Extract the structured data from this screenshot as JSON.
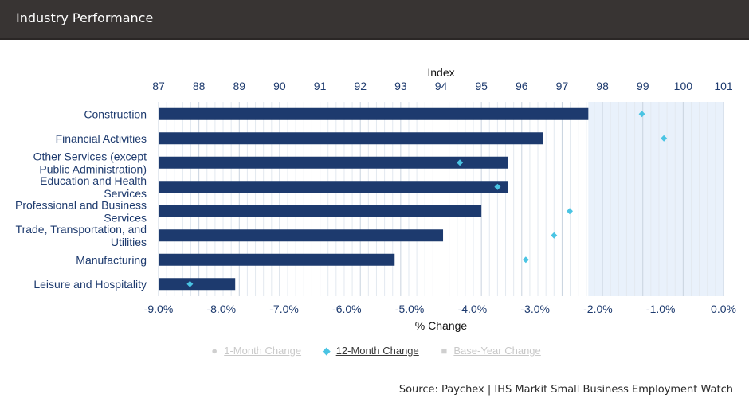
{
  "header": {
    "title": "Industry Performance"
  },
  "colors": {
    "bar": "#1d3a6e",
    "marker": "#4ac4e3",
    "shade": "#e9f1fb",
    "axis_text": "#1d3a6e"
  },
  "legend": [
    {
      "label": "1-Month Change",
      "icon": "circle-icon",
      "active": false
    },
    {
      "label": "12-Month Change",
      "icon": "diamond-icon",
      "active": true
    },
    {
      "label": "Base-Year Change",
      "icon": "square-icon",
      "active": false
    }
  ],
  "source": "Source: Paychex | IHS Markit Small Business Employment Watch",
  "chart_data": {
    "type": "bar",
    "orientation": "horizontal",
    "categories": [
      "Construction",
      "Financial Activities",
      "Other Services (except Public Administration)",
      "Education and Health Services",
      "Professional and Business Services",
      "Trade, Transportation, and Utilities",
      "Manufacturing",
      "Leisure and Hospitality"
    ],
    "category_lines": [
      [
        "Construction"
      ],
      [
        "Financial Activities"
      ],
      [
        "Other Services (except",
        "Public Administration)"
      ],
      [
        "Education and Health",
        "Services"
      ],
      [
        "Professional and Business",
        "Services"
      ],
      [
        "Trade, Transportation, and",
        "Utilities"
      ],
      [
        "Manufacturing"
      ],
      [
        "Leisure and Hospitality"
      ]
    ],
    "series": [
      {
        "name": "12-Month Change",
        "axis": "bottom",
        "values": [
          -1.3,
          -0.95,
          -4.2,
          -3.6,
          -2.45,
          -2.7,
          -3.15,
          -8.5
        ]
      },
      {
        "name": "Index",
        "axis": "top",
        "values": [
          97.65,
          96.52,
          95.65,
          95.65,
          95.0,
          94.05,
          92.85,
          88.9
        ]
      }
    ],
    "shaded_region": [
      97.65,
      101
    ],
    "top_axis": {
      "label": "Index",
      "range": [
        87,
        101
      ],
      "ticks": [
        "87",
        "88",
        "89",
        "90",
        "91",
        "92",
        "93",
        "94",
        "95",
        "96",
        "97",
        "98",
        "99",
        "100",
        "101"
      ]
    },
    "bottom_axis": {
      "label": "% Change",
      "range": [
        -9.0,
        0.0
      ],
      "ticks": [
        "-9.0%",
        "-8.0%",
        "-7.0%",
        "-6.0%",
        "-5.0%",
        "-4.0%",
        "-3.0%",
        "-2.0%",
        "-1.0%",
        "0.0%"
      ]
    },
    "grid": true
  }
}
